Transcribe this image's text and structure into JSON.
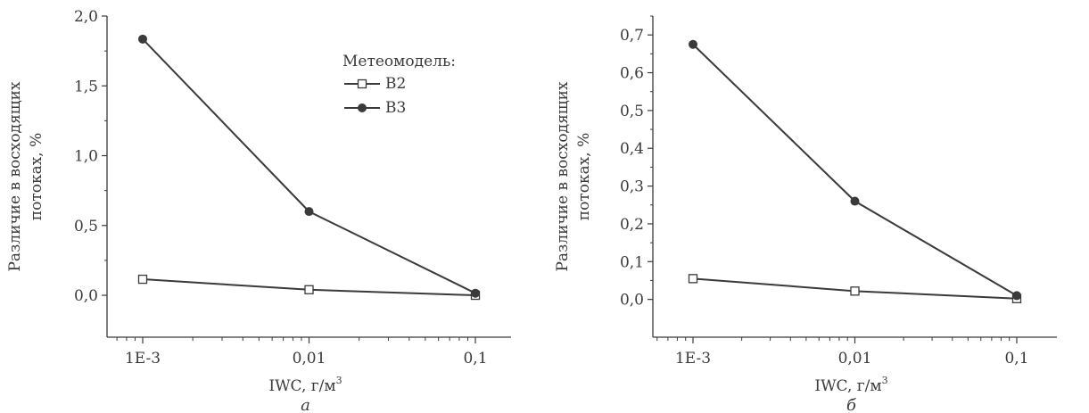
{
  "chart_data": [
    {
      "type": "line",
      "panel_label": "а",
      "x": [
        "1E-3",
        "0,01",
        "0,1"
      ],
      "x_values": [
        0.001,
        0.01,
        0.1
      ],
      "xscale": "log",
      "xlabel": "IWC, г/м",
      "xlabel_sup": "3",
      "ylabel": [
        "Различие в восходящих",
        "потоках, %"
      ],
      "ylim": [
        -0.3,
        2.0
      ],
      "yticks": [
        0.0,
        0.5,
        1.0,
        1.5,
        2.0
      ],
      "ytick_labels": [
        "0,0",
        "0,5",
        "1,0",
        "1,5",
        "2,0"
      ],
      "legend": {
        "title": "Метеомодель:",
        "placement": "top-right",
        "entries": [
          "B2",
          "B3"
        ]
      },
      "grid": false,
      "series": [
        {
          "name": "B2",
          "marker": "open-square",
          "values": [
            0.115,
            0.04,
            0.0
          ]
        },
        {
          "name": "B3",
          "marker": "filled-circle",
          "values": [
            1.835,
            0.6,
            0.015
          ]
        }
      ]
    },
    {
      "type": "line",
      "panel_label": "б",
      "x": [
        "1E-3",
        "0,01",
        "0,1"
      ],
      "x_values": [
        0.001,
        0.01,
        0.1
      ],
      "xscale": "log",
      "xlabel": "IWC, г/м",
      "xlabel_sup": "3",
      "ylabel": [
        "Различие в восходящих",
        "потоках, %"
      ],
      "ylim": [
        -0.1,
        0.75
      ],
      "yticks": [
        0.0,
        0.1,
        0.2,
        0.3,
        0.4,
        0.5,
        0.6,
        0.7
      ],
      "ytick_labels": [
        "0,0",
        "0,1",
        "0,2",
        "0,3",
        "0,4",
        "0,5",
        "0,6",
        "0,7"
      ],
      "grid": false,
      "series": [
        {
          "name": "B2",
          "marker": "open-square",
          "values": [
            0.055,
            0.022,
            0.002
          ]
        },
        {
          "name": "B3",
          "marker": "filled-circle",
          "values": [
            0.675,
            0.26,
            0.01
          ]
        }
      ]
    }
  ]
}
